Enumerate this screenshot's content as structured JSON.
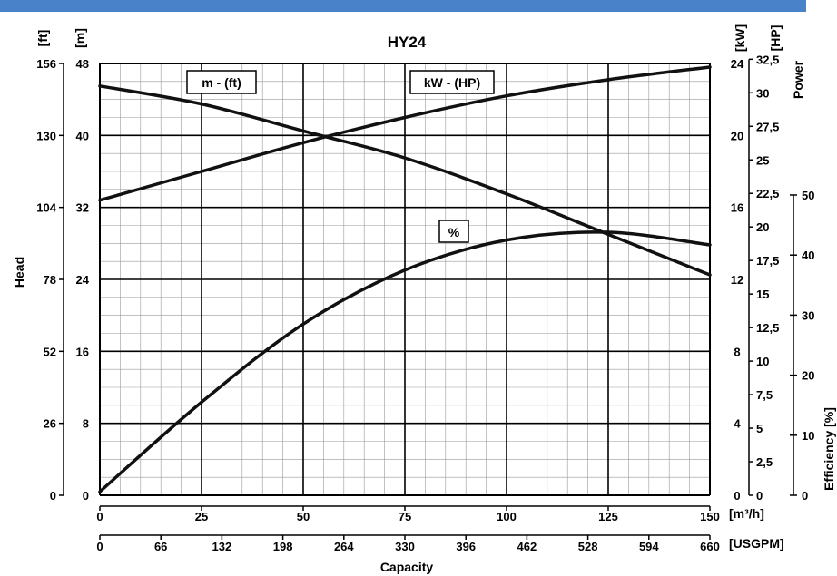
{
  "colors": {
    "top_bar": "#4a82c9",
    "curve": "#111111",
    "grid_major": "#000000",
    "grid_minor": "#9a9a9a"
  },
  "chart_data": {
    "type": "line",
    "title": "HY24",
    "xlabel": "Capacity",
    "ylabel_left": "Head",
    "ylabel_right_power": "Power",
    "ylabel_right_efficiency": "Efficiency [%]",
    "units": {
      "head_ft": "[ft]",
      "head_m": "[m]",
      "power_kw": "[kW]",
      "power_hp": "[HP]",
      "flow_m3h": "[m³/h]",
      "flow_usgpm": "[USGPM]"
    },
    "x_ticks_m3h": [
      "0",
      "25",
      "50",
      "75",
      "100",
      "125",
      "150"
    ],
    "x_ticks_usgpm": [
      "0",
      "66",
      "132",
      "198",
      "264",
      "330",
      "396",
      "462",
      "528",
      "594",
      "660"
    ],
    "y_ticks_ft": [
      "0",
      "26",
      "52",
      "78",
      "104",
      "130",
      "156"
    ],
    "y_ticks_m": [
      "0",
      "8",
      "16",
      "24",
      "32",
      "40",
      "48"
    ],
    "y_ticks_kw": [
      "0",
      "4",
      "8",
      "12",
      "16",
      "20",
      "24"
    ],
    "y_ticks_hp": [
      "0",
      "2,5",
      "5",
      "7,5",
      "10",
      "12,5",
      "15",
      "17,5",
      "20",
      "22,5",
      "25",
      "27,5",
      "30",
      "32,5"
    ],
    "y_ticks_eff": [
      "0",
      "10",
      "20",
      "30",
      "40",
      "50"
    ],
    "xlim": [
      0,
      150
    ],
    "ylim_head_m": [
      0,
      48
    ],
    "ylim_power_kw": [
      0,
      24
    ],
    "ylim_eff_pct": [
      0,
      50
    ],
    "curve_labels": {
      "head": "m - (ft)",
      "power": "kW - (HP)",
      "efficiency": "%"
    },
    "series": [
      {
        "name": "m - (ft)",
        "axis": "head_m",
        "x": [
          0,
          25,
          50,
          75,
          100,
          125,
          150
        ],
        "y": [
          45.5,
          43.5,
          40.5,
          37.5,
          33.5,
          29,
          24.5
        ]
      },
      {
        "name": "kW - (HP)",
        "axis": "power_kw",
        "x": [
          0,
          25,
          50,
          75,
          100,
          125,
          150
        ],
        "y": [
          16.4,
          18.0,
          19.6,
          21.0,
          22.2,
          23.1,
          23.8
        ]
      },
      {
        "name": "%",
        "axis": "efficiency_pct",
        "x": [
          0,
          25,
          50,
          75,
          100,
          125,
          150
        ],
        "y": [
          0.6,
          15.5,
          28.5,
          37.5,
          42.5,
          43.8,
          41.7
        ]
      }
    ]
  }
}
